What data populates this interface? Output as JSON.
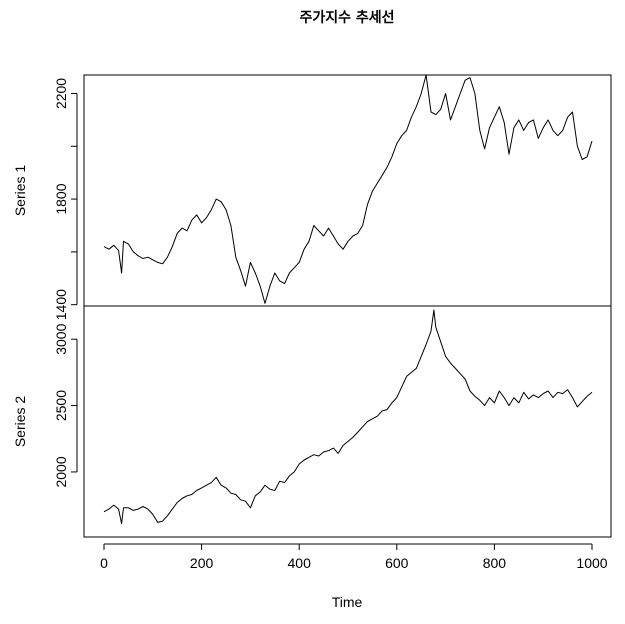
{
  "chart_data": {
    "type": "line",
    "title": "주가지수 추세선",
    "xlabel": "Time",
    "xlim": [
      0,
      1000
    ],
    "x_ticks": [
      "0",
      "200",
      "400",
      "600",
      "800",
      "1000"
    ],
    "panels": [
      {
        "ylabel": "Series 1",
        "ylim": [
          1395,
          2270
        ],
        "y_ticks": [
          "1400",
          "1800",
          "2200"
        ],
        "y_minor_ticks": [
          "1600",
          "2000"
        ],
        "points": [
          [
            0,
            1620
          ],
          [
            10,
            1610
          ],
          [
            20,
            1625
          ],
          [
            30,
            1605
          ],
          [
            36,
            1520
          ],
          [
            40,
            1640
          ],
          [
            50,
            1630
          ],
          [
            60,
            1600
          ],
          [
            70,
            1585
          ],
          [
            80,
            1575
          ],
          [
            90,
            1580
          ],
          [
            100,
            1570
          ],
          [
            110,
            1560
          ],
          [
            120,
            1555
          ],
          [
            130,
            1580
          ],
          [
            140,
            1620
          ],
          [
            150,
            1670
          ],
          [
            160,
            1690
          ],
          [
            170,
            1680
          ],
          [
            180,
            1720
          ],
          [
            190,
            1740
          ],
          [
            200,
            1710
          ],
          [
            210,
            1730
          ],
          [
            220,
            1760
          ],
          [
            230,
            1800
          ],
          [
            240,
            1790
          ],
          [
            250,
            1760
          ],
          [
            260,
            1700
          ],
          [
            270,
            1580
          ],
          [
            280,
            1530
          ],
          [
            290,
            1470
          ],
          [
            300,
            1560
          ],
          [
            310,
            1520
          ],
          [
            320,
            1470
          ],
          [
            330,
            1405
          ],
          [
            340,
            1470
          ],
          [
            350,
            1520
          ],
          [
            360,
            1490
          ],
          [
            370,
            1480
          ],
          [
            380,
            1520
          ],
          [
            390,
            1540
          ],
          [
            400,
            1560
          ],
          [
            410,
            1610
          ],
          [
            420,
            1640
          ],
          [
            430,
            1700
          ],
          [
            440,
            1680
          ],
          [
            450,
            1660
          ],
          [
            460,
            1690
          ],
          [
            470,
            1660
          ],
          [
            480,
            1630
          ],
          [
            490,
            1610
          ],
          [
            500,
            1640
          ],
          [
            510,
            1660
          ],
          [
            520,
            1670
          ],
          [
            530,
            1700
          ],
          [
            540,
            1780
          ],
          [
            550,
            1830
          ],
          [
            560,
            1860
          ],
          [
            570,
            1890
          ],
          [
            580,
            1920
          ],
          [
            590,
            1960
          ],
          [
            600,
            2010
          ],
          [
            610,
            2040
          ],
          [
            620,
            2060
          ],
          [
            630,
            2110
          ],
          [
            640,
            2150
          ],
          [
            650,
            2200
          ],
          [
            660,
            2270
          ],
          [
            670,
            2130
          ],
          [
            680,
            2120
          ],
          [
            690,
            2140
          ],
          [
            700,
            2200
          ],
          [
            710,
            2100
          ],
          [
            720,
            2150
          ],
          [
            730,
            2200
          ],
          [
            740,
            2250
          ],
          [
            750,
            2260
          ],
          [
            760,
            2200
          ],
          [
            770,
            2060
          ],
          [
            780,
            1990
          ],
          [
            790,
            2070
          ],
          [
            800,
            2110
          ],
          [
            810,
            2150
          ],
          [
            820,
            2090
          ],
          [
            830,
            1970
          ],
          [
            840,
            2070
          ],
          [
            850,
            2100
          ],
          [
            860,
            2060
          ],
          [
            870,
            2090
          ],
          [
            880,
            2100
          ],
          [
            890,
            2030
          ],
          [
            900,
            2070
          ],
          [
            910,
            2100
          ],
          [
            920,
            2060
          ],
          [
            930,
            2040
          ],
          [
            940,
            2060
          ],
          [
            950,
            2110
          ],
          [
            960,
            2130
          ],
          [
            970,
            2000
          ],
          [
            980,
            1950
          ],
          [
            990,
            1960
          ],
          [
            1000,
            2020
          ]
        ]
      },
      {
        "ylabel": "Series 2",
        "ylim": [
          1510,
          3250
        ],
        "y_ticks": [
          "2000",
          "2500",
          "3000"
        ],
        "points": [
          [
            0,
            1700
          ],
          [
            10,
            1720
          ],
          [
            20,
            1750
          ],
          [
            30,
            1720
          ],
          [
            36,
            1610
          ],
          [
            40,
            1730
          ],
          [
            50,
            1730
          ],
          [
            60,
            1710
          ],
          [
            70,
            1720
          ],
          [
            80,
            1740
          ],
          [
            90,
            1720
          ],
          [
            100,
            1680
          ],
          [
            110,
            1620
          ],
          [
            120,
            1630
          ],
          [
            130,
            1670
          ],
          [
            140,
            1720
          ],
          [
            150,
            1770
          ],
          [
            160,
            1800
          ],
          [
            170,
            1820
          ],
          [
            180,
            1830
          ],
          [
            190,
            1860
          ],
          [
            200,
            1880
          ],
          [
            210,
            1900
          ],
          [
            220,
            1920
          ],
          [
            230,
            1960
          ],
          [
            240,
            1900
          ],
          [
            250,
            1880
          ],
          [
            260,
            1840
          ],
          [
            270,
            1830
          ],
          [
            280,
            1790
          ],
          [
            290,
            1780
          ],
          [
            300,
            1730
          ],
          [
            310,
            1820
          ],
          [
            320,
            1850
          ],
          [
            330,
            1900
          ],
          [
            340,
            1870
          ],
          [
            350,
            1860
          ],
          [
            360,
            1930
          ],
          [
            370,
            1920
          ],
          [
            380,
            1970
          ],
          [
            390,
            2000
          ],
          [
            400,
            2060
          ],
          [
            410,
            2090
          ],
          [
            420,
            2110
          ],
          [
            430,
            2130
          ],
          [
            440,
            2120
          ],
          [
            450,
            2150
          ],
          [
            460,
            2160
          ],
          [
            470,
            2180
          ],
          [
            480,
            2140
          ],
          [
            490,
            2200
          ],
          [
            500,
            2230
          ],
          [
            510,
            2260
          ],
          [
            520,
            2300
          ],
          [
            530,
            2340
          ],
          [
            540,
            2380
          ],
          [
            550,
            2400
          ],
          [
            560,
            2420
          ],
          [
            570,
            2460
          ],
          [
            580,
            2470
          ],
          [
            590,
            2520
          ],
          [
            600,
            2560
          ],
          [
            610,
            2640
          ],
          [
            620,
            2720
          ],
          [
            630,
            2750
          ],
          [
            640,
            2780
          ],
          [
            650,
            2870
          ],
          [
            660,
            2960
          ],
          [
            670,
            3060
          ],
          [
            676,
            3220
          ],
          [
            680,
            3090
          ],
          [
            690,
            2980
          ],
          [
            700,
            2870
          ],
          [
            710,
            2820
          ],
          [
            720,
            2780
          ],
          [
            730,
            2740
          ],
          [
            740,
            2700
          ],
          [
            750,
            2610
          ],
          [
            760,
            2570
          ],
          [
            770,
            2540
          ],
          [
            780,
            2500
          ],
          [
            790,
            2560
          ],
          [
            800,
            2520
          ],
          [
            810,
            2610
          ],
          [
            820,
            2560
          ],
          [
            830,
            2500
          ],
          [
            840,
            2560
          ],
          [
            850,
            2520
          ],
          [
            860,
            2600
          ],
          [
            870,
            2550
          ],
          [
            880,
            2580
          ],
          [
            890,
            2560
          ],
          [
            900,
            2590
          ],
          [
            910,
            2610
          ],
          [
            920,
            2560
          ],
          [
            930,
            2600
          ],
          [
            940,
            2590
          ],
          [
            950,
            2620
          ],
          [
            960,
            2560
          ],
          [
            970,
            2490
          ],
          [
            980,
            2530
          ],
          [
            990,
            2570
          ],
          [
            1000,
            2600
          ]
        ]
      }
    ]
  }
}
